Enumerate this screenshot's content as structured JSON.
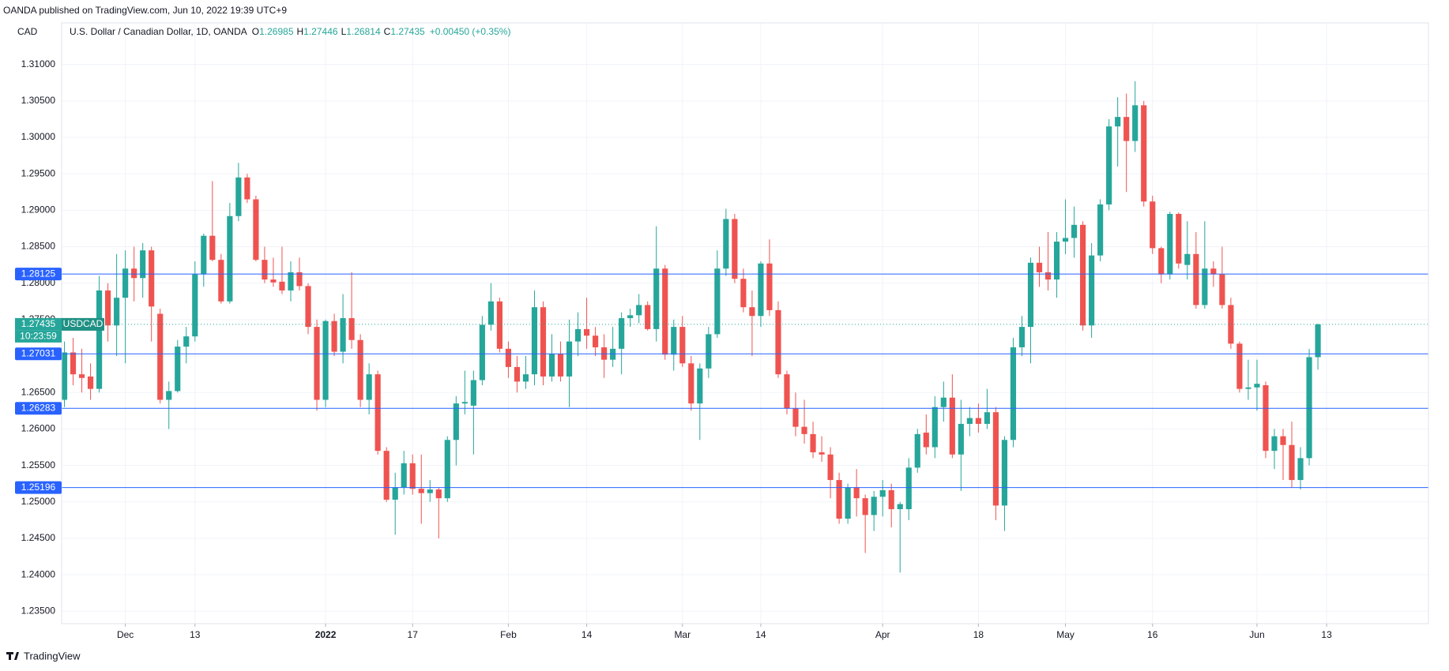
{
  "published": "OANDA published on TradingView.com, Jun 10, 2022 19:39 UTC+9",
  "footer": "TradingView",
  "chart_data": {
    "type": "candlestick",
    "currency": "CAD",
    "symbol": "U.S. Dollar / Canadian Dollar, 1D, OANDA",
    "legend_labels": [
      "O",
      "H",
      "L",
      "C"
    ],
    "change_label": "+0.00450 (+0.35%)",
    "last_price_symbol": "USDCAD",
    "countdown": "10:23:59",
    "up_color": "#26a69a",
    "down_color": "#ef5350",
    "level_color": "#2962ff",
    "grid": true,
    "levels": [
      1.28125,
      1.27031,
      1.26283,
      1.25196
    ],
    "ylim": [
      1.2333,
      1.3157
    ],
    "yticks": [
      {
        "value": 1.235,
        "label": "1.23500"
      },
      {
        "value": 1.24,
        "label": "1.24000"
      },
      {
        "value": 1.245,
        "label": "1.24500"
      },
      {
        "value": 1.25,
        "label": "1.25000"
      },
      {
        "value": 1.255,
        "label": "1.25500"
      },
      {
        "value": 1.26,
        "label": "1.26000"
      },
      {
        "value": 1.265,
        "label": "1.26500"
      },
      {
        "value": 1.27,
        "label": "1.27000"
      },
      {
        "value": 1.275,
        "label": "1.27500"
      },
      {
        "value": 1.28,
        "label": "1.28000"
      },
      {
        "value": 1.285,
        "label": "1.28500"
      },
      {
        "value": 1.29,
        "label": "1.29000"
      },
      {
        "value": 1.295,
        "label": "1.29500"
      },
      {
        "value": 1.3,
        "label": "1.30000"
      },
      {
        "value": 1.305,
        "label": "1.30500"
      },
      {
        "value": 1.31,
        "label": "1.31000"
      }
    ],
    "xlim": [
      -0.32,
      156.7
    ],
    "xticks": [
      {
        "value": 7,
        "label": "Dec"
      },
      {
        "value": 15,
        "label": "13"
      },
      {
        "value": 30,
        "label": "2022"
      },
      {
        "value": 40,
        "label": "17"
      },
      {
        "value": 51,
        "label": "Feb"
      },
      {
        "value": 60,
        "label": "14"
      },
      {
        "value": 71,
        "label": "Mar"
      },
      {
        "value": 80,
        "label": "14"
      },
      {
        "value": 94,
        "label": "Apr"
      },
      {
        "value": 105,
        "label": "18"
      },
      {
        "value": 115,
        "label": "May"
      },
      {
        "value": 125,
        "label": "16"
      },
      {
        "value": 137,
        "label": "Jun"
      },
      {
        "value": 145,
        "label": "13"
      }
    ],
    "open": [
      1.264,
      1.2705,
      1.2675,
      1.2672,
      1.2655,
      1.279,
      1.2742,
      1.278,
      1.282,
      1.2807,
      1.2845,
      1.2758,
      1.264,
      1.2652,
      1.2713,
      1.2727,
      1.2812,
      1.2865,
      1.2832,
      1.2775,
      1.2892,
      1.2945,
      1.2915,
      1.2832,
      1.2805,
      1.2802,
      1.279,
      1.2815,
      1.2796,
      1.274,
      1.264,
      1.2748,
      1.2706,
      1.2752,
      1.2722,
      1.264,
      1.2675,
      1.257,
      1.2503,
      1.252,
      1.2553,
      1.2518,
      1.2512,
      1.2517,
      1.2505,
      1.2585,
      1.2635,
      1.2632,
      1.2667,
      1.2743,
      1.2775,
      1.271,
      1.2685,
      1.2665,
      1.2675,
      1.2767,
      1.2672,
      1.2703,
      1.2672,
      1.272,
      1.2737,
      1.2728,
      1.2712,
      1.2695,
      1.271,
      1.2752,
      1.2756,
      1.277,
      1.2737,
      1.282,
      1.2702,
      1.274,
      1.269,
      1.2635,
      1.2683,
      1.273,
      1.282,
      1.2888,
      1.2806,
      1.2767,
      1.2755,
      1.2827,
      1.2763,
      1.2675,
      1.2628,
      1.2603,
      1.2593,
      1.2568,
      1.2565,
      1.253,
      1.2477,
      1.252,
      1.2505,
      1.2482,
      1.2507,
      1.2516,
      1.249,
      1.249,
      1.2547,
      1.2595,
      1.2575,
      1.263,
      1.2643,
      1.2565,
      1.2607,
      1.2615,
      1.2607,
      1.2623,
      1.2495,
      1.2585,
      1.2712,
      1.274,
      1.2828,
      1.2815,
      1.2805,
      1.2857,
      1.2862,
      1.288,
      1.2742,
      1.2838,
      1.2908,
      1.3015,
      1.3028,
      1.2995,
      1.3044,
      1.2912,
      1.2848,
      1.2812,
      1.2895,
      1.2825,
      1.284,
      1.277,
      1.282,
      1.2812,
      1.277,
      1.2717,
      1.2655,
      1.2657,
      1.266,
      1.257,
      1.259,
      1.2578,
      1.253,
      1.256,
      1.26985
    ],
    "high": [
      1.272,
      1.2725,
      1.271,
      1.269,
      1.281,
      1.28,
      1.284,
      1.2845,
      1.285,
      1.2855,
      1.285,
      1.2765,
      1.2665,
      1.2722,
      1.274,
      1.283,
      1.2868,
      1.294,
      1.284,
      1.291,
      1.2965,
      1.295,
      1.292,
      1.285,
      1.2835,
      1.285,
      1.283,
      1.2835,
      1.28,
      1.275,
      1.275,
      1.2758,
      1.2785,
      1.2815,
      1.273,
      1.269,
      1.268,
      1.2575,
      1.254,
      1.257,
      1.2565,
      1.2565,
      1.253,
      1.252,
      1.259,
      1.2645,
      1.268,
      1.268,
      1.2755,
      1.28,
      1.278,
      1.272,
      1.27,
      1.27,
      1.279,
      1.2775,
      1.273,
      1.272,
      1.275,
      1.276,
      1.278,
      1.274,
      1.273,
      1.274,
      1.276,
      1.2765,
      1.2785,
      1.2775,
      1.2878,
      1.2825,
      1.275,
      1.2755,
      1.27,
      1.269,
      1.274,
      1.2845,
      1.2902,
      1.2895,
      1.282,
      1.279,
      1.283,
      1.286,
      1.2775,
      1.268,
      1.265,
      1.264,
      1.261,
      1.259,
      1.2575,
      1.254,
      1.2525,
      1.2545,
      1.251,
      1.2515,
      1.253,
      1.2525,
      1.25,
      1.256,
      1.26,
      1.262,
      1.2645,
      1.2665,
      1.2675,
      1.264,
      1.263,
      1.2635,
      1.2655,
      1.263,
      1.259,
      1.2725,
      1.2755,
      1.2835,
      1.285,
      1.287,
      1.287,
      1.2915,
      1.2905,
      1.2885,
      1.2855,
      1.2915,
      1.3025,
      1.3055,
      1.306,
      1.3077,
      1.305,
      1.292,
      1.285,
      1.2898,
      1.2897,
      1.2885,
      1.287,
      1.2885,
      1.283,
      1.285,
      1.278,
      1.272,
      1.2695,
      1.2695,
      1.2665,
      1.26,
      1.26,
      1.261,
      1.2575,
      1.271,
      1.27446
    ],
    "low": [
      1.263,
      1.266,
      1.265,
      1.264,
      1.265,
      1.272,
      1.27,
      1.269,
      1.2775,
      1.278,
      1.272,
      1.2635,
      1.26,
      1.265,
      1.269,
      1.272,
      1.2795,
      1.283,
      1.2772,
      1.2772,
      1.2885,
      1.291,
      1.283,
      1.28,
      1.2795,
      1.2785,
      1.2775,
      1.279,
      1.273,
      1.2625,
      1.263,
      1.27,
      1.269,
      1.271,
      1.263,
      1.262,
      1.2565,
      1.25,
      1.2455,
      1.251,
      1.251,
      1.247,
      1.25,
      1.245,
      1.25,
      1.255,
      1.262,
      1.2565,
      1.266,
      1.2735,
      1.2705,
      1.267,
      1.265,
      1.2655,
      1.266,
      1.266,
      1.2665,
      1.2665,
      1.263,
      1.27,
      1.271,
      1.27,
      1.267,
      1.2685,
      1.2675,
      1.274,
      1.2745,
      1.2735,
      1.272,
      1.2695,
      1.268,
      1.2685,
      1.2625,
      1.2585,
      1.267,
      1.2725,
      1.281,
      1.28,
      1.276,
      1.27,
      1.274,
      1.2755,
      1.267,
      1.262,
      1.259,
      1.258,
      1.256,
      1.2555,
      1.2505,
      1.247,
      1.247,
      1.248,
      1.243,
      1.246,
      1.248,
      1.2465,
      1.2403,
      1.2475,
      1.254,
      1.2565,
      1.256,
      1.261,
      1.256,
      1.2515,
      1.259,
      1.2595,
      1.26,
      1.2475,
      1.246,
      1.2575,
      1.27,
      1.269,
      1.2795,
      1.279,
      1.278,
      1.284,
      1.2835,
      1.2735,
      1.2725,
      1.283,
      1.29,
      1.296,
      1.2925,
      1.298,
      1.2905,
      1.284,
      1.28,
      1.2805,
      1.282,
      1.2805,
      1.2765,
      1.2765,
      1.2795,
      1.2765,
      1.271,
      1.265,
      1.264,
      1.2625,
      1.256,
      1.2545,
      1.253,
      1.252,
      1.2517,
      1.255,
      1.26814
    ],
    "close": [
      1.2705,
      1.2675,
      1.267,
      1.2655,
      1.279,
      1.2742,
      1.278,
      1.282,
      1.2807,
      1.2845,
      1.2768,
      1.264,
      1.2652,
      1.2713,
      1.2727,
      1.2812,
      1.2865,
      1.2832,
      1.2775,
      1.2892,
      1.2945,
      1.2915,
      1.2832,
      1.2805,
      1.2801,
      1.279,
      1.2815,
      1.2796,
      1.274,
      1.264,
      1.2748,
      1.2706,
      1.2752,
      1.2722,
      1.264,
      1.2675,
      1.257,
      1.2503,
      1.252,
      1.2553,
      1.2518,
      1.2512,
      1.2517,
      1.2505,
      1.2585,
      1.2635,
      1.2637,
      1.2667,
      1.2743,
      1.2775,
      1.271,
      1.2685,
      1.2665,
      1.2675,
      1.2767,
      1.2672,
      1.2703,
      1.2672,
      1.272,
      1.2737,
      1.2728,
      1.2712,
      1.2695,
      1.271,
      1.2752,
      1.2756,
      1.277,
      1.2737,
      1.282,
      1.2702,
      1.274,
      1.269,
      1.2635,
      1.2683,
      1.273,
      1.282,
      1.2888,
      1.2806,
      1.2767,
      1.2755,
      1.2827,
      1.2763,
      1.2675,
      1.2628,
      1.2603,
      1.2593,
      1.2568,
      1.2565,
      1.253,
      1.2477,
      1.252,
      1.2505,
      1.2482,
      1.2507,
      1.2516,
      1.249,
      1.2497,
      1.2547,
      1.2593,
      1.2575,
      1.263,
      1.2643,
      1.2565,
      1.2607,
      1.2615,
      1.2607,
      1.2623,
      1.2495,
      1.2585,
      1.2712,
      1.274,
      1.2828,
      1.2815,
      1.2805,
      1.2857,
      1.2862,
      1.288,
      1.2742,
      1.2838,
      1.2908,
      1.3015,
      1.3028,
      1.2995,
      1.3044,
      1.2912,
      1.2848,
      1.2812,
      1.2895,
      1.2827,
      1.284,
      1.277,
      1.282,
      1.2812,
      1.277,
      1.2717,
      1.2655,
      1.2657,
      1.2662,
      1.257,
      1.259,
      1.2578,
      1.253,
      1.256,
      1.26985,
      1.27435
    ]
  }
}
